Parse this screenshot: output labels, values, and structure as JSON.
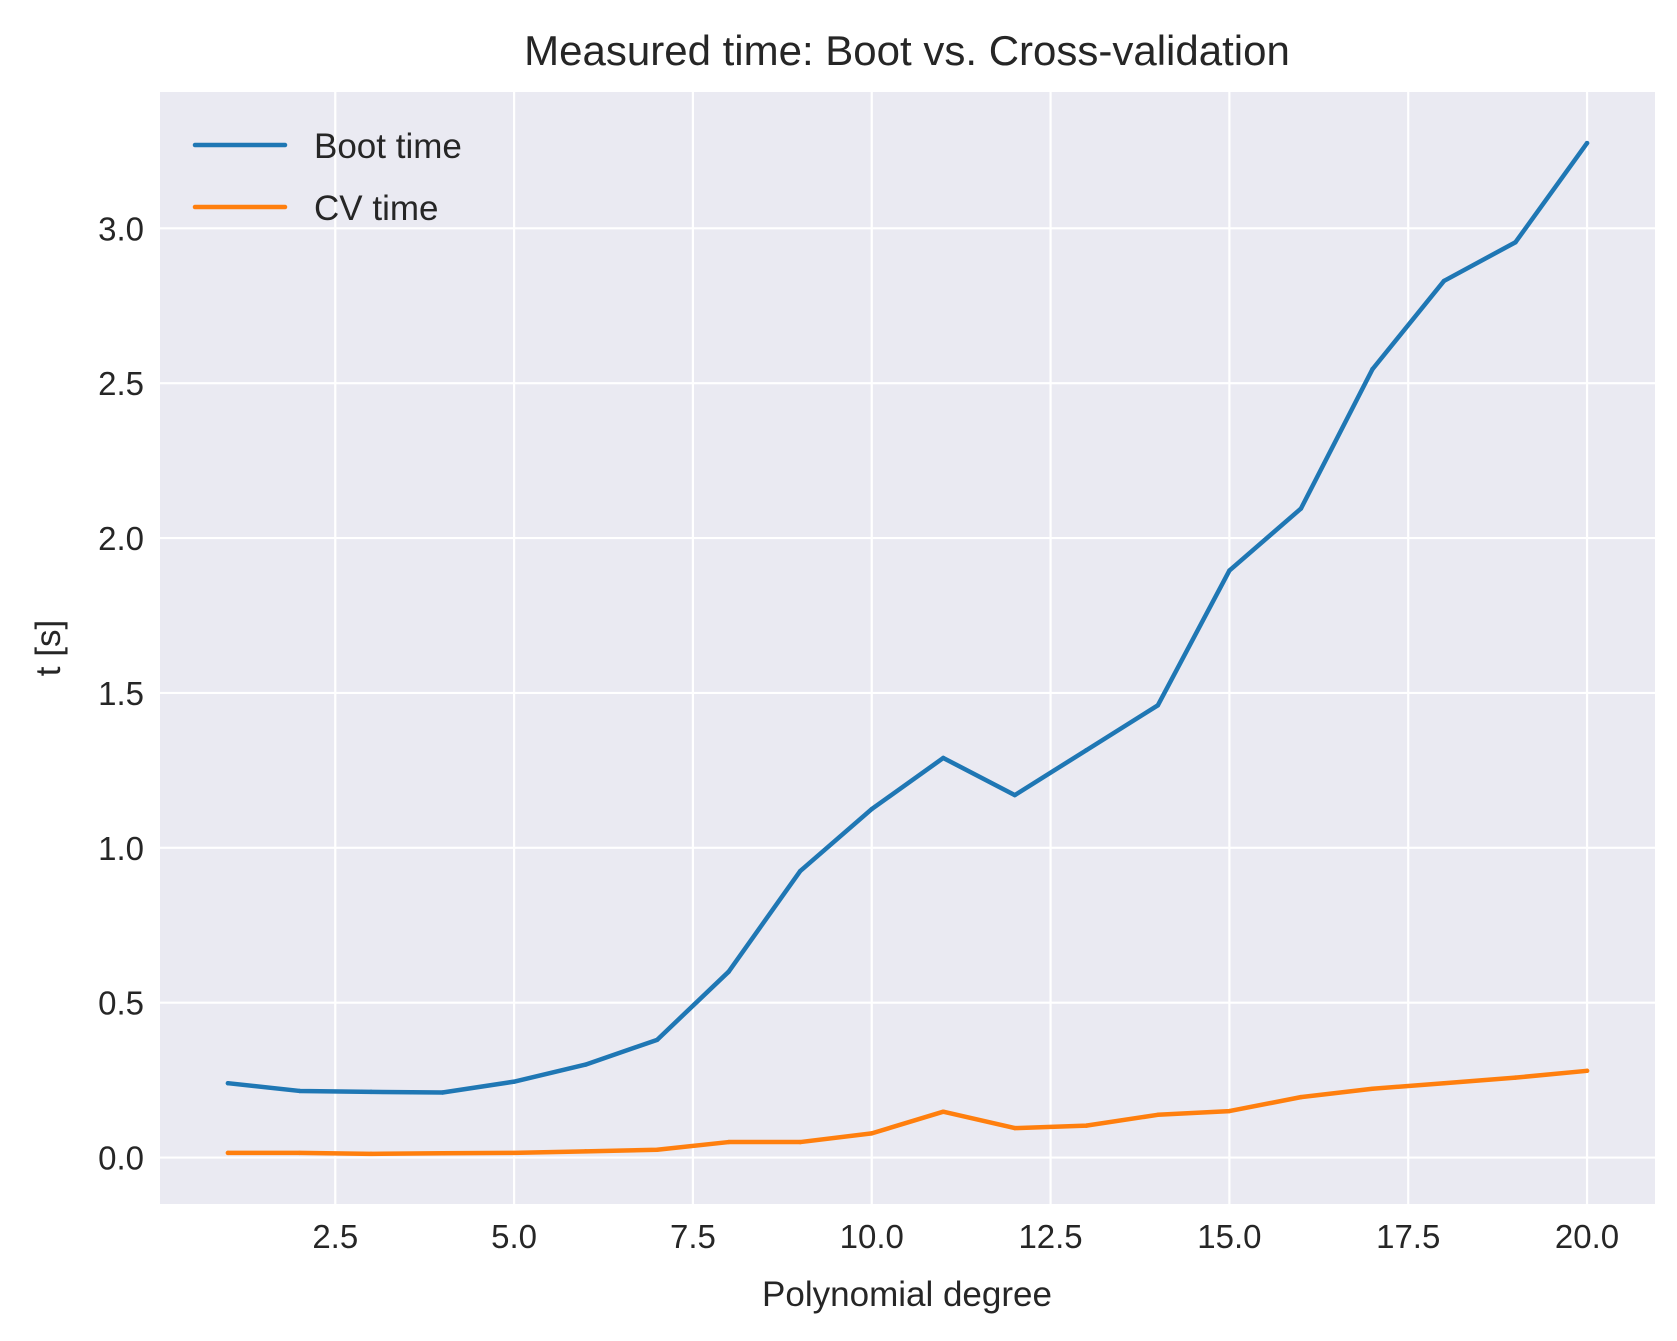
{
  "chart_data": {
    "type": "line",
    "title": "Measured time: Boot vs. Cross-validation",
    "xlabel": "Polynomial degree",
    "ylabel": "t [s]",
    "xlim": [
      0.05,
      20.95
    ],
    "ylim": [
      -0.15,
      3.44
    ],
    "xticks": [
      2.5,
      5.0,
      7.5,
      10.0,
      12.5,
      15.0,
      17.5,
      20.0
    ],
    "xtick_labels": [
      "2.5",
      "5.0",
      "7.5",
      "10.0",
      "12.5",
      "15.0",
      "17.5",
      "20.0"
    ],
    "yticks": [
      0.0,
      0.5,
      1.0,
      1.5,
      2.0,
      2.5,
      3.0
    ],
    "ytick_labels": [
      "0.0",
      "0.5",
      "1.0",
      "1.5",
      "2.0",
      "2.5",
      "3.0"
    ],
    "grid": true,
    "background": "#eaeaf2",
    "grid_color": "#ffffff",
    "legend_position": "top-left",
    "x": [
      1,
      2,
      3,
      4,
      5,
      6,
      7,
      8,
      9,
      10,
      11,
      12,
      13,
      14,
      15,
      16,
      17,
      18,
      19,
      20
    ],
    "series": [
      {
        "name": "Boot time",
        "color": "#1f77b4",
        "values": [
          0.24,
          0.215,
          0.212,
          0.21,
          0.245,
          0.3,
          0.38,
          0.6,
          0.925,
          1.125,
          1.29,
          1.17,
          1.315,
          1.46,
          1.895,
          2.095,
          2.545,
          2.83,
          2.955,
          3.275
        ]
      },
      {
        "name": "CV time",
        "color": "#ff7f0e",
        "values": [
          0.015,
          0.015,
          0.012,
          0.014,
          0.015,
          0.02,
          0.025,
          0.05,
          0.05,
          0.078,
          0.148,
          0.095,
          0.103,
          0.138,
          0.15,
          0.195,
          0.222,
          0.24,
          0.258,
          0.28
        ]
      }
    ]
  }
}
